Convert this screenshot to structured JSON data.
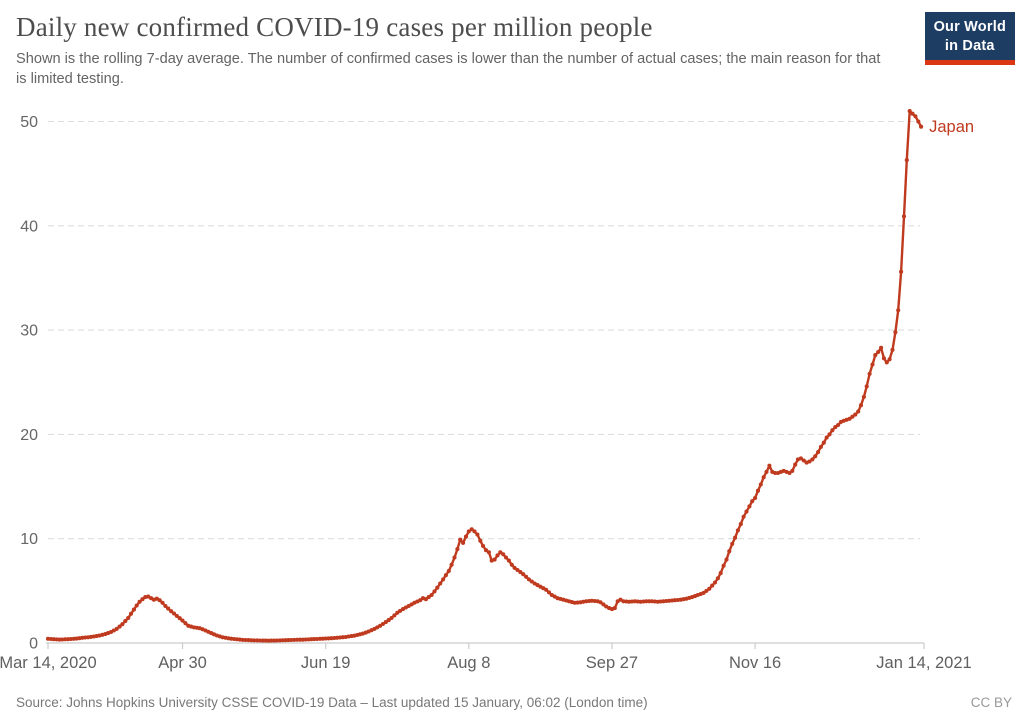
{
  "header": {
    "title": "Daily new confirmed COVID-19 cases per million people",
    "subtitle": "Shown is the rolling 7-day average. The number of confirmed cases is lower than the number of actual cases; the main reason for that is limited testing."
  },
  "logo": {
    "line1": "Our World",
    "line2": "in Data",
    "bg_color": "#1d3d63",
    "bar_color": "#dc3714"
  },
  "footer": {
    "source": "Source: Johns Hopkins University CSSE COVID-19 Data – Last updated 15 January, 06:02 (London time)",
    "license": "CC BY"
  },
  "chart_data": {
    "type": "line",
    "title": "Daily new confirmed COVID-19 cases per million people",
    "xlabel": "",
    "ylabel": "",
    "grid": true,
    "grid_style": "dashed",
    "y_domain": [
      0,
      50
    ],
    "y_ticks": [
      0,
      10,
      20,
      30,
      40,
      50
    ],
    "x_domain_days": [
      0,
      306
    ],
    "x_ticks": [
      {
        "day": 0,
        "label": "Mar 14, 2020"
      },
      {
        "day": 47,
        "label": "Apr 30"
      },
      {
        "day": 97,
        "label": "Jun 19"
      },
      {
        "day": 147,
        "label": "Aug 8"
      },
      {
        "day": 197,
        "label": "Sep 27"
      },
      {
        "day": 247,
        "label": "Nov 16"
      },
      {
        "day": 306,
        "label": "Jan 14, 2021"
      }
    ],
    "legend_position": "end-of-line",
    "series": [
      {
        "name": "Japan",
        "color": "#bf3a1e",
        "points_format": "[day_offset_from_Mar14_2020, cases_per_million]",
        "points": [
          [
            0,
            0.4
          ],
          [
            2,
            0.36
          ],
          [
            4,
            0.33
          ],
          [
            6,
            0.35
          ],
          [
            8,
            0.38
          ],
          [
            10,
            0.42
          ],
          [
            12,
            0.5
          ],
          [
            14,
            0.55
          ],
          [
            16,
            0.62
          ],
          [
            18,
            0.72
          ],
          [
            20,
            0.85
          ],
          [
            22,
            1.05
          ],
          [
            24,
            1.35
          ],
          [
            26,
            1.8
          ],
          [
            28,
            2.4
          ],
          [
            30,
            3.2
          ],
          [
            31,
            3.6
          ],
          [
            32,
            3.95
          ],
          [
            33,
            4.2
          ],
          [
            34,
            4.4
          ],
          [
            35,
            4.45
          ],
          [
            36,
            4.3
          ],
          [
            37,
            4.15
          ],
          [
            38,
            4.25
          ],
          [
            39,
            4.1
          ],
          [
            40,
            3.85
          ],
          [
            41,
            3.55
          ],
          [
            43,
            3.05
          ],
          [
            45,
            2.6
          ],
          [
            47,
            2.15
          ],
          [
            49,
            1.65
          ],
          [
            51,
            1.5
          ],
          [
            53,
            1.42
          ],
          [
            55,
            1.2
          ],
          [
            57,
            0.95
          ],
          [
            59,
            0.72
          ],
          [
            61,
            0.55
          ],
          [
            63,
            0.45
          ],
          [
            65,
            0.38
          ],
          [
            68,
            0.3
          ],
          [
            71,
            0.26
          ],
          [
            74,
            0.24
          ],
          [
            77,
            0.22
          ],
          [
            80,
            0.24
          ],
          [
            83,
            0.27
          ],
          [
            86,
            0.3
          ],
          [
            89,
            0.32
          ],
          [
            92,
            0.36
          ],
          [
            95,
            0.4
          ],
          [
            98,
            0.44
          ],
          [
            101,
            0.5
          ],
          [
            104,
            0.58
          ],
          [
            107,
            0.7
          ],
          [
            110,
            0.9
          ],
          [
            112,
            1.1
          ],
          [
            114,
            1.35
          ],
          [
            116,
            1.65
          ],
          [
            118,
            2.0
          ],
          [
            120,
            2.4
          ],
          [
            122,
            2.9
          ],
          [
            124,
            3.25
          ],
          [
            126,
            3.55
          ],
          [
            128,
            3.85
          ],
          [
            130,
            4.1
          ],
          [
            131,
            4.3
          ],
          [
            132,
            4.2
          ],
          [
            134,
            4.6
          ],
          [
            136,
            5.3
          ],
          [
            138,
            6.1
          ],
          [
            140,
            6.9
          ],
          [
            141,
            7.5
          ],
          [
            142,
            8.2
          ],
          [
            143,
            9.0
          ],
          [
            144,
            9.9
          ],
          [
            145,
            9.6
          ],
          [
            146,
            10.2
          ],
          [
            147,
            10.7
          ],
          [
            148,
            10.9
          ],
          [
            149,
            10.7
          ],
          [
            150,
            10.4
          ],
          [
            151,
            9.8
          ],
          [
            152,
            9.3
          ],
          [
            153,
            8.9
          ],
          [
            154,
            8.7
          ],
          [
            155,
            7.9
          ],
          [
            156,
            8.0
          ],
          [
            157,
            8.4
          ],
          [
            158,
            8.7
          ],
          [
            159,
            8.5
          ],
          [
            160,
            8.2
          ],
          [
            161,
            7.9
          ],
          [
            162,
            7.5
          ],
          [
            163,
            7.2
          ],
          [
            164,
            7.0
          ],
          [
            166,
            6.6
          ],
          [
            168,
            6.1
          ],
          [
            170,
            5.7
          ],
          [
            172,
            5.4
          ],
          [
            174,
            5.1
          ],
          [
            176,
            4.6
          ],
          [
            178,
            4.3
          ],
          [
            180,
            4.15
          ],
          [
            182,
            4.0
          ],
          [
            184,
            3.85
          ],
          [
            186,
            3.9
          ],
          [
            188,
            4.0
          ],
          [
            190,
            4.05
          ],
          [
            192,
            4.0
          ],
          [
            193,
            3.9
          ],
          [
            194,
            3.7
          ],
          [
            195,
            3.5
          ],
          [
            196,
            3.35
          ],
          [
            197,
            3.25
          ],
          [
            198,
            3.35
          ],
          [
            199,
            4.0
          ],
          [
            200,
            4.15
          ],
          [
            201,
            4.0
          ],
          [
            203,
            3.95
          ],
          [
            205,
            4.0
          ],
          [
            207,
            3.95
          ],
          [
            209,
            4.0
          ],
          [
            211,
            4.0
          ],
          [
            213,
            3.95
          ],
          [
            215,
            4.0
          ],
          [
            217,
            4.05
          ],
          [
            219,
            4.1
          ],
          [
            221,
            4.15
          ],
          [
            223,
            4.25
          ],
          [
            225,
            4.4
          ],
          [
            227,
            4.6
          ],
          [
            229,
            4.8
          ],
          [
            230,
            5.0
          ],
          [
            231,
            5.2
          ],
          [
            232,
            5.5
          ],
          [
            233,
            5.8
          ],
          [
            234,
            6.2
          ],
          [
            235,
            6.7
          ],
          [
            236,
            7.4
          ],
          [
            237,
            8.0
          ],
          [
            238,
            8.8
          ],
          [
            239,
            9.5
          ],
          [
            240,
            10.1
          ],
          [
            241,
            10.8
          ],
          [
            242,
            11.4
          ],
          [
            243,
            12.1
          ],
          [
            244,
            12.6
          ],
          [
            245,
            13.1
          ],
          [
            246,
            13.6
          ],
          [
            247,
            13.9
          ],
          [
            248,
            14.6
          ],
          [
            249,
            15.2
          ],
          [
            250,
            15.9
          ],
          [
            251,
            16.4
          ],
          [
            252,
            17.0
          ],
          [
            253,
            16.4
          ],
          [
            254,
            16.3
          ],
          [
            255,
            16.3
          ],
          [
            256,
            16.4
          ],
          [
            257,
            16.5
          ],
          [
            258,
            16.4
          ],
          [
            259,
            16.3
          ],
          [
            260,
            16.5
          ],
          [
            261,
            17.1
          ],
          [
            262,
            17.6
          ],
          [
            263,
            17.7
          ],
          [
            264,
            17.5
          ],
          [
            265,
            17.3
          ],
          [
            266,
            17.4
          ],
          [
            267,
            17.6
          ],
          [
            268,
            17.9
          ],
          [
            269,
            18.3
          ],
          [
            270,
            18.8
          ],
          [
            271,
            19.2
          ],
          [
            272,
            19.7
          ],
          [
            273,
            20.0
          ],
          [
            274,
            20.4
          ],
          [
            275,
            20.7
          ],
          [
            276,
            20.9
          ],
          [
            277,
            21.2
          ],
          [
            278,
            21.3
          ],
          [
            279,
            21.4
          ],
          [
            280,
            21.5
          ],
          [
            281,
            21.7
          ],
          [
            282,
            21.9
          ],
          [
            283,
            22.2
          ],
          [
            284,
            22.8
          ],
          [
            285,
            23.6
          ],
          [
            286,
            24.6
          ],
          [
            287,
            25.8
          ],
          [
            288,
            26.7
          ],
          [
            289,
            27.6
          ],
          [
            290,
            27.9
          ],
          [
            291,
            28.3
          ],
          [
            292,
            27.3
          ],
          [
            293,
            26.9
          ],
          [
            294,
            27.2
          ],
          [
            295,
            28.1
          ],
          [
            296,
            29.8
          ],
          [
            297,
            31.9
          ],
          [
            298,
            35.6
          ],
          [
            299,
            40.9
          ],
          [
            300,
            46.3
          ],
          [
            301,
            51.0
          ],
          [
            303,
            50.5
          ],
          [
            305,
            49.5
          ]
        ]
      }
    ]
  }
}
